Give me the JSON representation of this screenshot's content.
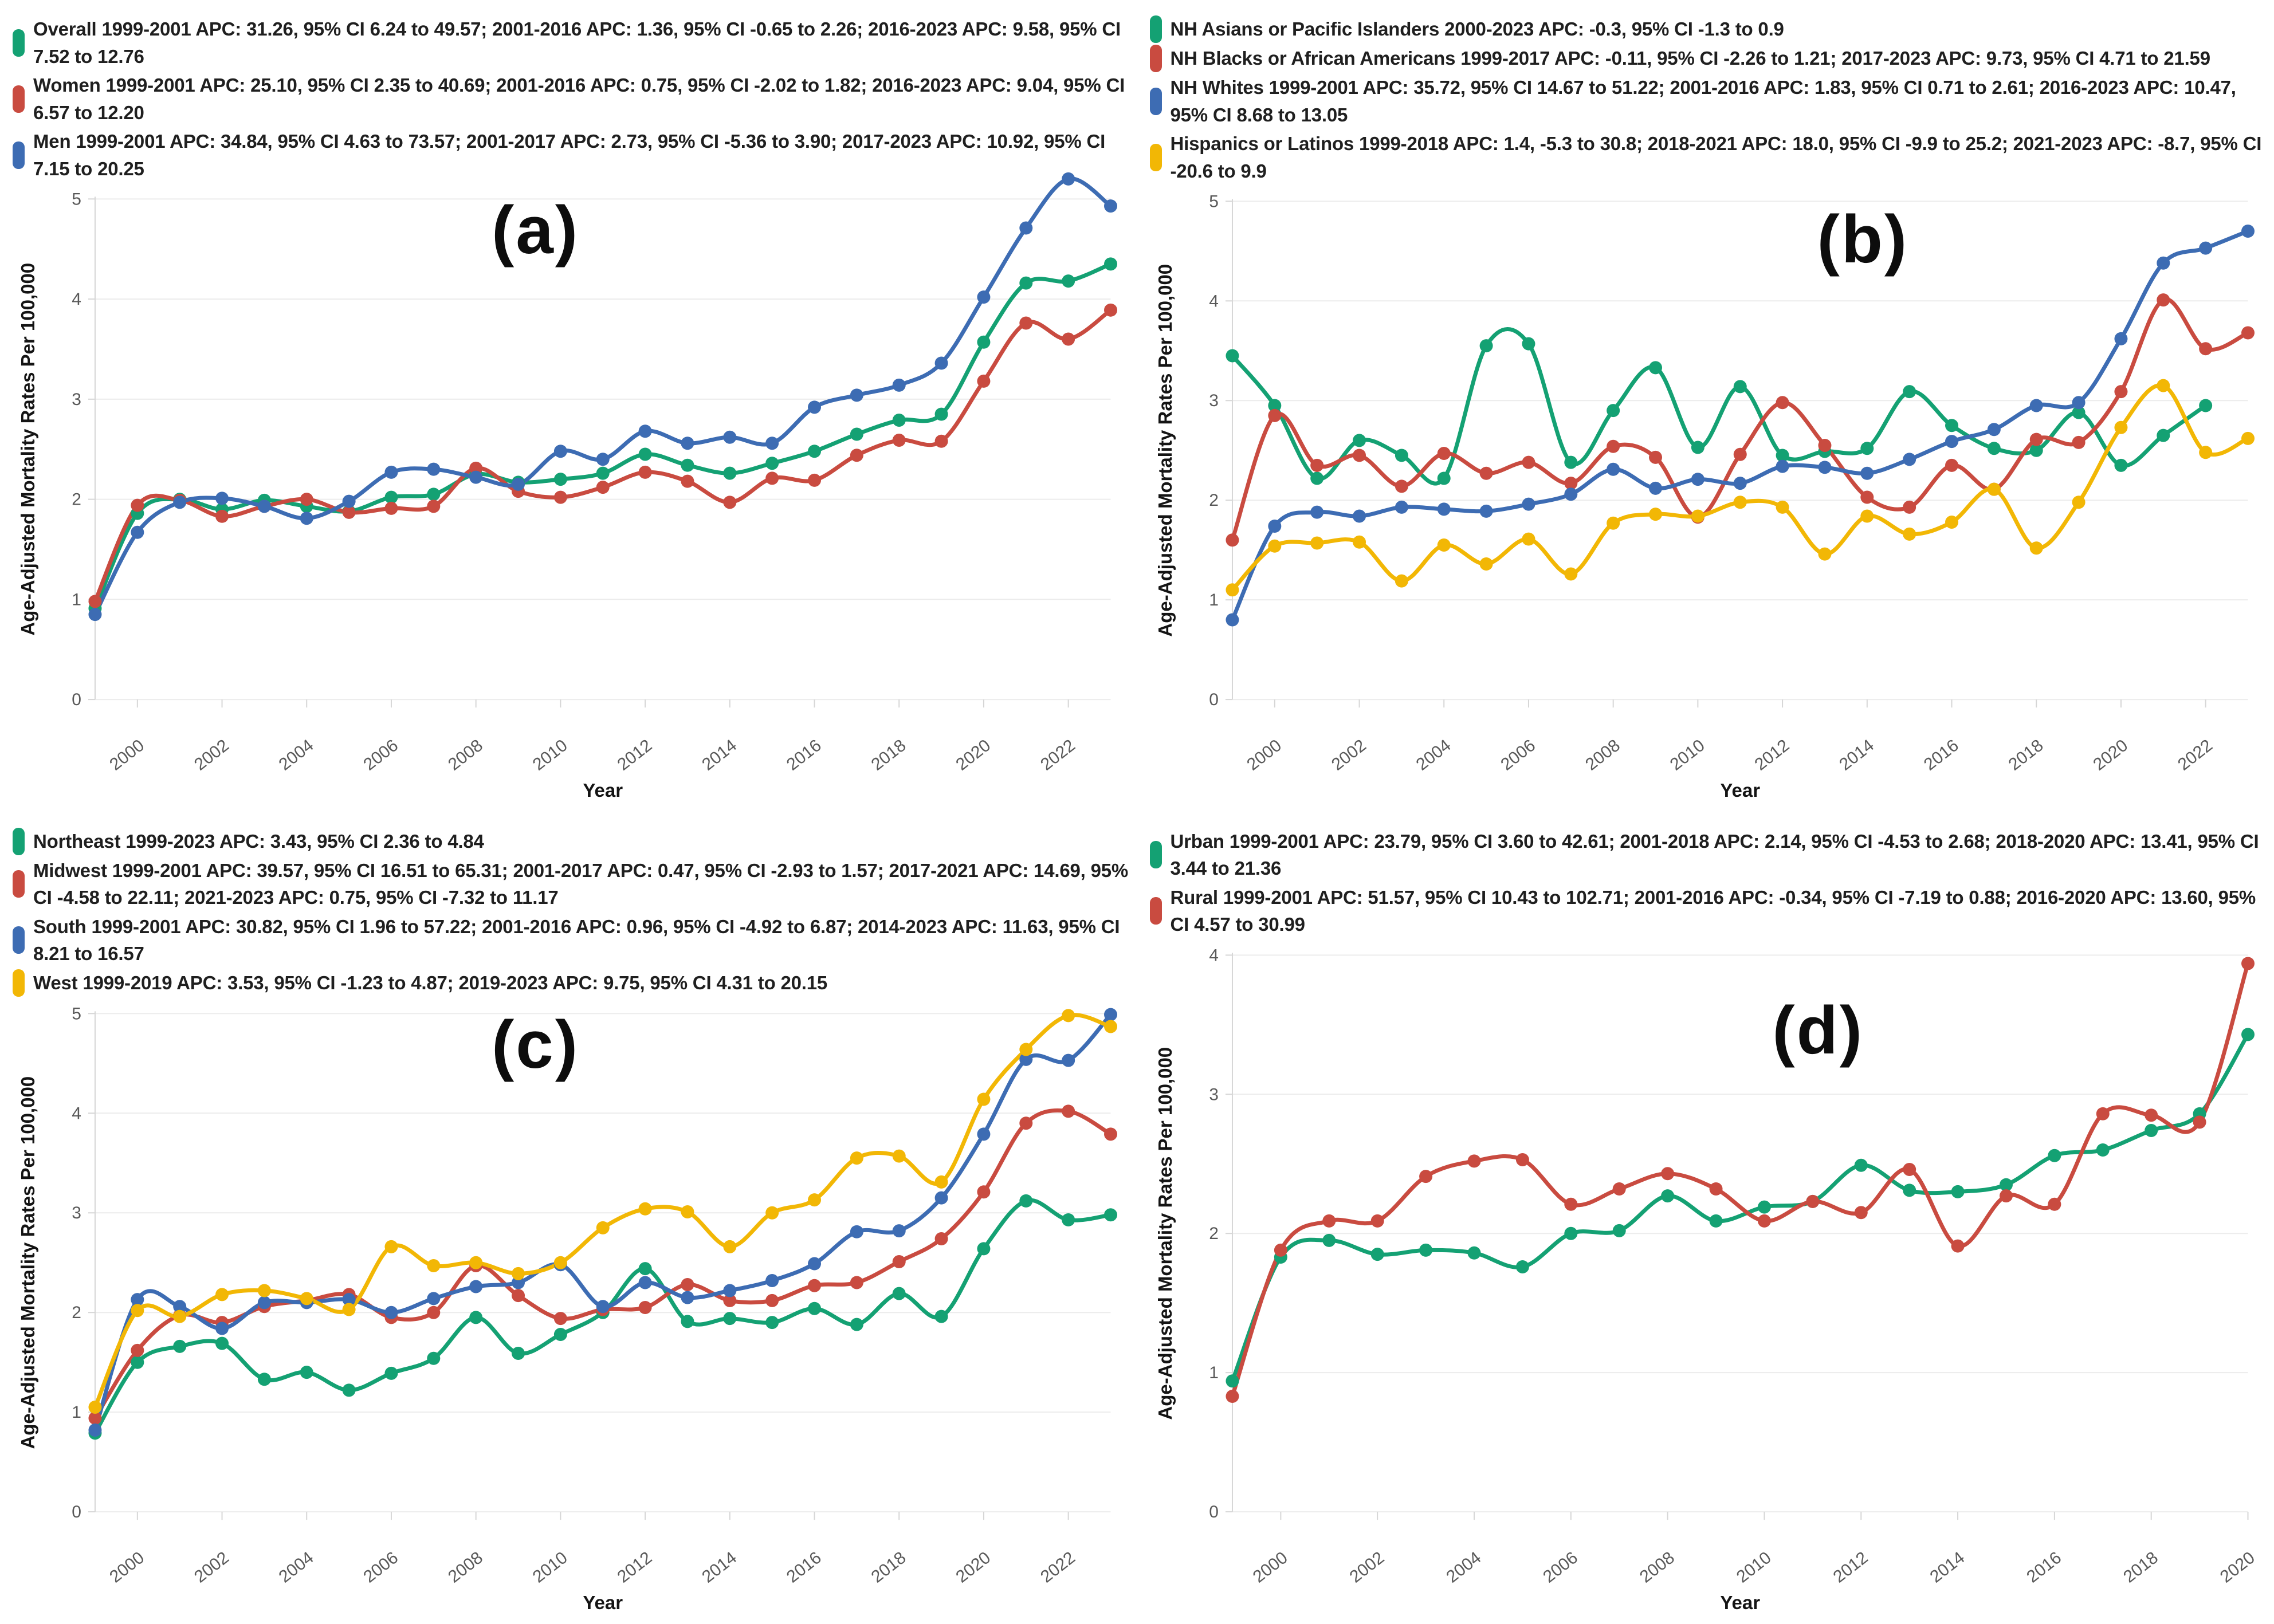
{
  "palette": {
    "green": "#14a173",
    "red": "#c94b40",
    "blue": "#3d6cb3",
    "yellow": "#f2b705"
  },
  "styles": {
    "grid_color": "#ececec",
    "axis_color": "#d6d6d6",
    "tick_label_color": "#595959",
    "axis_label_color": "#141414",
    "letter_color": "#0d0d0d",
    "background": "#ffffff"
  },
  "chart_data": [
    {
      "panel": "a",
      "title": "(a)",
      "type": "line",
      "xlabel": "Year",
      "ylabel": "Age-Adjusted Mortality Rates Per 100,000",
      "ylim": [
        0,
        5
      ],
      "yticks": [
        0,
        1,
        2,
        3,
        4,
        5
      ],
      "x": [
        1999,
        2000,
        2001,
        2002,
        2003,
        2004,
        2005,
        2006,
        2007,
        2008,
        2009,
        2010,
        2011,
        2012,
        2013,
        2014,
        2015,
        2016,
        2017,
        2018,
        2019,
        2020,
        2021,
        2022,
        2023
      ],
      "x_ticks": [
        2000,
        2002,
        2004,
        2006,
        2008,
        2010,
        2012,
        2014,
        2016,
        2018,
        2020,
        2022
      ],
      "grid": true,
      "legend_position": "top-left",
      "series": [
        {
          "name": "Overall",
          "color": "green",
          "legend_label": "Overall 1999-2001 APC: 31.26, 95% CI 6.24 to 49.57; 2001-2016 APC: 1.36, 95% CI -0.65 to 2.26; 2016-2023 APC: 9.58, 95% CI 7.52 to 12.76",
          "values": [
            0.91,
            1.86,
            2.0,
            1.9,
            1.99,
            1.93,
            1.88,
            2.02,
            2.05,
            2.25,
            2.17,
            2.2,
            2.26,
            2.45,
            2.34,
            2.26,
            2.36,
            2.48,
            2.65,
            2.79,
            2.85,
            3.57,
            4.16,
            4.18,
            4.35
          ]
        },
        {
          "name": "Women",
          "color": "red",
          "legend_label": "Women 1999-2001 APC: 25.10, 95% CI 2.35 to 40.69; 2001-2016 APC: 0.75, 95% CI -2.02 to 1.82; 2016-2023 APC: 9.04, 95% CI 6.57 to 12.20",
          "values": [
            0.98,
            1.94,
            1.99,
            1.83,
            1.93,
            2.0,
            1.87,
            1.91,
            1.93,
            2.31,
            2.08,
            2.02,
            2.12,
            2.27,
            2.18,
            1.97,
            2.21,
            2.19,
            2.44,
            2.59,
            2.58,
            3.18,
            3.76,
            3.6,
            3.89
          ]
        },
        {
          "name": "Men",
          "color": "blue",
          "legend_label": "Men 1999-2001 APC: 34.84, 95% CI 4.63 to 73.57; 2001-2017 APC: 2.73, 95% CI -5.36 to 3.90; 2017-2023 APC: 10.92, 95% CI 7.15 to 20.25",
          "values": [
            0.85,
            1.67,
            1.97,
            2.01,
            1.93,
            1.81,
            1.98,
            2.27,
            2.3,
            2.22,
            2.15,
            2.48,
            2.4,
            2.68,
            2.56,
            2.62,
            2.56,
            2.92,
            3.04,
            3.14,
            3.36,
            4.02,
            4.71,
            5.2,
            4.93
          ]
        }
      ]
    },
    {
      "panel": "b",
      "title": "(b)",
      "type": "line",
      "xlabel": "Year",
      "ylabel": "Age-Adjusted Mortality Rates Per 100,000",
      "ylim": [
        0,
        5
      ],
      "yticks": [
        0,
        1,
        2,
        3,
        4,
        5
      ],
      "x": [
        1999,
        2000,
        2001,
        2002,
        2003,
        2004,
        2005,
        2006,
        2007,
        2008,
        2009,
        2010,
        2011,
        2012,
        2013,
        2014,
        2015,
        2016,
        2017,
        2018,
        2019,
        2020,
        2021,
        2022,
        2023
      ],
      "x_ticks": [
        2000,
        2002,
        2004,
        2006,
        2008,
        2010,
        2012,
        2014,
        2016,
        2018,
        2020,
        2022
      ],
      "grid": true,
      "legend_position": "top-left",
      "series": [
        {
          "name": "NH Asians or Pacific Islanders",
          "color": "green",
          "legend_label": "NH Asians or Pacific Islanders 2000-2023 APC: -0.3, 95% CI -1.3 to 0.9",
          "values": [
            3.45,
            2.95,
            2.22,
            2.6,
            2.45,
            2.22,
            3.55,
            3.57,
            2.38,
            2.9,
            3.33,
            2.53,
            3.14,
            2.45,
            2.49,
            2.52,
            3.09,
            2.75,
            2.52,
            2.5,
            2.88,
            2.35,
            2.65,
            2.95,
            null
          ]
        },
        {
          "name": "NH Blacks or African Americans",
          "color": "red",
          "legend_label": "NH Blacks or African Americans 1999-2017 APC: -0.11, 95% CI -2.26 to 1.21; 2017-2023 APC: 9.73, 95% CI 4.71 to 21.59",
          "values": [
            1.6,
            2.85,
            2.35,
            2.45,
            2.14,
            2.47,
            2.27,
            2.38,
            2.17,
            2.54,
            2.43,
            1.83,
            2.46,
            2.98,
            2.55,
            2.03,
            1.93,
            2.35,
            2.11,
            2.61,
            2.58,
            3.09,
            4.01,
            3.52,
            3.68
          ]
        },
        {
          "name": "NH Whites",
          "color": "blue",
          "legend_label": "NH Whites 1999-2001 APC: 35.72, 95% CI 14.67 to 51.22; 2001-2016 APC: 1.83, 95% CI 0.71 to 2.61; 2016-2023 APC: 10.47, 95% CI 8.68 to 13.05",
          "values": [
            0.8,
            1.74,
            1.88,
            1.84,
            1.93,
            1.91,
            1.89,
            1.96,
            2.06,
            2.31,
            2.12,
            2.21,
            2.17,
            2.34,
            2.33,
            2.27,
            2.41,
            2.59,
            2.71,
            2.95,
            2.98,
            3.62,
            4.38,
            4.53,
            4.7
          ]
        },
        {
          "name": "Hispanics or Latinos",
          "color": "yellow",
          "legend_label": "Hispanics or Latinos 1999-2018 APC: 1.4, -5.3 to 30.8; 2018-2021 APC: 18.0, 95% CI -9.9 to 25.2; 2021-2023 APC: -8.7, 95% CI -20.6 to 9.9",
          "values": [
            1.1,
            1.54,
            1.57,
            1.58,
            1.19,
            1.55,
            1.36,
            1.61,
            1.26,
            1.77,
            1.86,
            1.84,
            1.98,
            1.93,
            1.46,
            1.84,
            1.66,
            1.78,
            2.11,
            1.52,
            1.98,
            2.73,
            3.15,
            2.48,
            2.62
          ]
        }
      ]
    },
    {
      "panel": "c",
      "title": "(c)",
      "type": "line",
      "xlabel": "Year",
      "ylabel": "Age-Adjusted Mortality Rates Per 100,000",
      "ylim": [
        0,
        5
      ],
      "yticks": [
        0,
        1,
        2,
        3,
        4,
        5
      ],
      "x": [
        1999,
        2000,
        2001,
        2002,
        2003,
        2004,
        2005,
        2006,
        2007,
        2008,
        2009,
        2010,
        2011,
        2012,
        2013,
        2014,
        2015,
        2016,
        2017,
        2018,
        2019,
        2020,
        2021,
        2022,
        2023
      ],
      "x_ticks": [
        2000,
        2002,
        2004,
        2006,
        2008,
        2010,
        2012,
        2014,
        2016,
        2018,
        2020,
        2022
      ],
      "grid": true,
      "legend_position": "top-left",
      "series": [
        {
          "name": "Northeast",
          "color": "green",
          "legend_label": "Northeast 1999-2023 APC: 3.43, 95% CI 2.36 to 4.84",
          "values": [
            0.79,
            1.5,
            1.66,
            1.69,
            1.33,
            1.4,
            1.22,
            1.39,
            1.54,
            1.95,
            1.59,
            1.78,
            2.0,
            2.44,
            1.91,
            1.94,
            1.9,
            2.04,
            1.88,
            2.19,
            1.96,
            2.64,
            3.12,
            2.93,
            2.98
          ]
        },
        {
          "name": "Midwest",
          "color": "red",
          "legend_label": "Midwest 1999-2001 APC: 39.57, 95% CI 16.51 to 65.31; 2001-2017 APC: 0.47, 95% CI -2.93 to 1.57; 2017-2021 APC: 14.69, 95% CI -4.58 to 22.11; 2021-2023 APC: 0.75, 95% CI -7.32 to 11.17",
          "values": [
            0.94,
            1.62,
            1.97,
            1.9,
            2.06,
            2.12,
            2.18,
            1.95,
            2.0,
            2.47,
            2.17,
            1.94,
            2.03,
            2.05,
            2.28,
            2.12,
            2.12,
            2.27,
            2.3,
            2.51,
            2.74,
            3.21,
            3.9,
            4.02,
            3.79
          ]
        },
        {
          "name": "South",
          "color": "blue",
          "legend_label": "South 1999-2001 APC: 30.82, 95% CI 1.96 to 57.22; 2001-2016 APC: 0.96, 95% CI -4.92 to 6.87; 2014-2023 APC: 11.63, 95% CI 8.21 to 16.57",
          "values": [
            0.82,
            2.13,
            2.06,
            1.84,
            2.1,
            2.1,
            2.13,
            2.0,
            2.14,
            2.26,
            2.3,
            2.48,
            2.06,
            2.3,
            2.15,
            2.22,
            2.32,
            2.49,
            2.81,
            2.82,
            3.15,
            3.79,
            4.54,
            4.53,
            4.99
          ]
        },
        {
          "name": "West",
          "color": "yellow",
          "legend_label": "West 1999-2019 APC: 3.53, 95% CI -1.23 to 4.87; 2019-2023 APC: 9.75, 95% CI 4.31 to 20.15",
          "values": [
            1.05,
            2.02,
            1.96,
            2.18,
            2.22,
            2.14,
            2.03,
            2.66,
            2.47,
            2.5,
            2.39,
            2.5,
            2.85,
            3.04,
            3.01,
            2.66,
            3.0,
            3.13,
            3.55,
            3.57,
            3.31,
            4.14,
            4.64,
            4.98,
            4.87
          ]
        }
      ]
    },
    {
      "panel": "d",
      "title": "(d)",
      "type": "line",
      "xlabel": "Year",
      "ylabel": "Age-Adjusted Mortality Rates Per 100,000",
      "ylim": [
        0,
        4
      ],
      "yticks": [
        0,
        1,
        2,
        3,
        4
      ],
      "x": [
        1999,
        2000,
        2001,
        2002,
        2003,
        2004,
        2005,
        2006,
        2007,
        2008,
        2009,
        2010,
        2011,
        2012,
        2013,
        2014,
        2015,
        2016,
        2017,
        2018,
        2019,
        2020
      ],
      "x_ticks": [
        2000,
        2002,
        2004,
        2006,
        2008,
        2010,
        2012,
        2014,
        2016,
        2018,
        2020
      ],
      "grid": true,
      "legend_position": "top-left",
      "series": [
        {
          "name": "Urban",
          "color": "green",
          "legend_label": "Urban 1999-2001 APC: 23.79, 95% CI 3.60 to 42.61; 2001-2018 APC: 2.14, 95% CI -4.53 to 2.68; 2018-2020 APC: 13.41, 95% CI 3.44 to 21.36",
          "values": [
            0.94,
            1.83,
            1.95,
            1.85,
            1.88,
            1.86,
            1.76,
            2.0,
            2.02,
            2.27,
            2.09,
            2.19,
            2.23,
            2.49,
            2.31,
            2.3,
            2.35,
            2.56,
            2.6,
            2.74,
            2.86,
            3.43
          ]
        },
        {
          "name": "Rural",
          "color": "red",
          "legend_label": "Rural 1999-2001 APC: 51.57, 95% CI 10.43 to 102.71; 2001-2016 APC: -0.34, 95% CI -7.19 to 0.88; 2016-2020 APC: 13.60, 95% CI 4.57 to 30.99",
          "values": [
            0.83,
            1.88,
            2.09,
            2.09,
            2.41,
            2.52,
            2.53,
            2.21,
            2.32,
            2.43,
            2.32,
            2.09,
            2.23,
            2.15,
            2.46,
            1.91,
            2.27,
            2.21,
            2.86,
            2.85,
            2.8,
            3.94
          ]
        }
      ]
    }
  ]
}
